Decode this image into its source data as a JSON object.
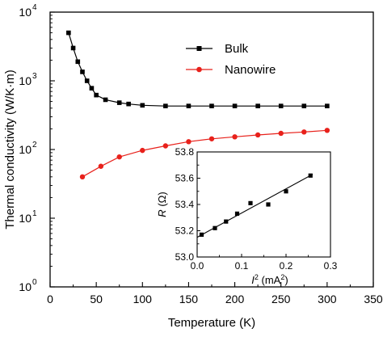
{
  "chart_data": [
    {
      "type": "line",
      "xlabel": "Temperature (K)",
      "ylabel": "Thermal conductivity (W/K·m)",
      "xlim": [
        0,
        350
      ],
      "ylim": [
        1,
        10000
      ],
      "yscale": "log",
      "x_ticks": [
        "0",
        "50",
        "100",
        "150",
        "200",
        "250",
        "300",
        "350"
      ],
      "y_ticks": [
        "10",
        "10",
        "10",
        "10",
        "10"
      ],
      "y_tick_exponents": [
        "0",
        "1",
        "2",
        "3",
        "4"
      ],
      "grid": false,
      "legend_position": "top-right",
      "series": [
        {
          "name": "Bulk",
          "color": "#000000",
          "marker": "square",
          "x": [
            20,
            25,
            30,
            35,
            40,
            45,
            50,
            60,
            75,
            85,
            100,
            125,
            150,
            175,
            200,
            225,
            250,
            275,
            300
          ],
          "y": [
            5000,
            3000,
            1900,
            1350,
            1000,
            780,
            620,
            530,
            480,
            460,
            440,
            430,
            430,
            430,
            430,
            430,
            430,
            430,
            430
          ]
        },
        {
          "name": "Nanowire",
          "color": "#e8211b",
          "marker": "circle",
          "x": [
            35,
            55,
            75,
            100,
            125,
            150,
            175,
            200,
            225,
            250,
            275,
            300
          ],
          "y": [
            40,
            57,
            78,
            97,
            113,
            130,
            143,
            153,
            163,
            172,
            180,
            190
          ]
        }
      ]
    },
    {
      "type": "scatter",
      "xlabel_var": "I",
      "xlabel_exp": "2",
      "xlabel_unit_open": " (mA",
      "xlabel_unit_exp": "2",
      "xlabel_unit_close": ")",
      "ylabel_var": "R",
      "ylabel_unit": " (Ω)",
      "xlim": [
        0,
        0.3
      ],
      "ylim": [
        53.0,
        53.8
      ],
      "x_ticks": [
        "0.0",
        "0.1",
        "0.2",
        "0.3"
      ],
      "y_ticks": [
        "53.0",
        "53.2",
        "53.4",
        "53.6",
        "53.8"
      ],
      "points": {
        "x": [
          0.01,
          0.04,
          0.065,
          0.09,
          0.12,
          0.16,
          0.2,
          0.255
        ],
        "y": [
          53.17,
          53.22,
          53.27,
          53.33,
          53.41,
          53.4,
          53.5,
          53.62
        ]
      },
      "fit_line": {
        "x": [
          0.0,
          0.26
        ],
        "y": [
          53.15,
          53.63
        ]
      }
    }
  ]
}
